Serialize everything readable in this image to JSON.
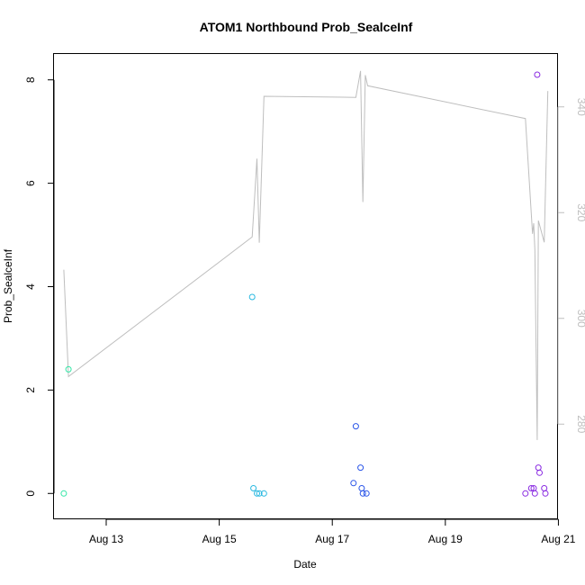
{
  "chart_data": {
    "type": "scatter",
    "title": "ATOM1 Northbound Prob_SealceInf",
    "xlabel": "Date",
    "ylabel": "Prob_SealceInf",
    "x_tick_labels": [
      {
        "date": "2013-08-13",
        "label": "Aug 13"
      },
      {
        "date": "2013-08-15",
        "label": "Aug 15"
      },
      {
        "date": "2013-08-17",
        "label": "Aug 17"
      },
      {
        "date": "2013-08-19",
        "label": "Aug 19"
      },
      {
        "date": "2013-08-21",
        "label": "Aug 21"
      }
    ],
    "xlim": [
      "2013-08-12T01:50",
      "2013-08-20T23:50"
    ],
    "ylim": [
      -0.5,
      8.5
    ],
    "y_ticks": [
      0,
      2,
      4,
      6,
      8
    ],
    "y2lim": [
      262,
      350
    ],
    "y2_ticks": [
      280,
      300,
      320,
      340
    ],
    "points": [
      {
        "x": "2013-08-12T06:00",
        "y": 0.0,
        "color": "#33e6a6"
      },
      {
        "x": "2013-08-12T08:00",
        "y": 2.4,
        "color": "#33e6a6"
      },
      {
        "x": "2013-08-15T14:00",
        "y": 3.8,
        "color": "#29b8e0"
      },
      {
        "x": "2013-08-15T14:30",
        "y": 0.1,
        "color": "#29b8e0"
      },
      {
        "x": "2013-08-15T16:00",
        "y": 0.0,
        "color": "#29b8e0"
      },
      {
        "x": "2013-08-15T17:00",
        "y": 0.0,
        "color": "#29b8e0"
      },
      {
        "x": "2013-08-15T19:00",
        "y": 0.0,
        "color": "#29b8e0"
      },
      {
        "x": "2013-08-17T09:00",
        "y": 0.2,
        "color": "#2a55e8"
      },
      {
        "x": "2013-08-17T10:00",
        "y": 1.3,
        "color": "#2a55e8"
      },
      {
        "x": "2013-08-17T12:00",
        "y": 0.5,
        "color": "#2a55e8"
      },
      {
        "x": "2013-08-17T12:30",
        "y": 0.1,
        "color": "#2a55e8"
      },
      {
        "x": "2013-08-17T13:00",
        "y": 0.0,
        "color": "#2a55e8"
      },
      {
        "x": "2013-08-17T14:30",
        "y": 0.0,
        "color": "#2a55e8"
      },
      {
        "x": "2013-08-20T10:00",
        "y": 0.0,
        "color": "#8a2be2"
      },
      {
        "x": "2013-08-20T12:30",
        "y": 0.1,
        "color": "#8a2be2"
      },
      {
        "x": "2013-08-20T13:30",
        "y": 0.1,
        "color": "#8a2be2"
      },
      {
        "x": "2013-08-20T14:00",
        "y": 0.0,
        "color": "#8a2be2"
      },
      {
        "x": "2013-08-20T15:00",
        "y": 8.1,
        "color": "#8a2be2"
      },
      {
        "x": "2013-08-20T15:30",
        "y": 0.5,
        "color": "#8a2be2"
      },
      {
        "x": "2013-08-20T16:00",
        "y": 0.4,
        "color": "#8a2be2"
      },
      {
        "x": "2013-08-20T18:00",
        "y": 0.1,
        "color": "#8a2be2"
      },
      {
        "x": "2013-08-20T18:30",
        "y": 0.0,
        "color": "#8a2be2"
      }
    ],
    "line_series": {
      "color": "#bebebe",
      "axis": "right",
      "points": [
        {
          "x": "2013-08-12T06:00",
          "y": 309.2
        },
        {
          "x": "2013-08-12T08:00",
          "y": 289.0
        },
        {
          "x": "2013-08-15T14:00",
          "y": 315.4
        },
        {
          "x": "2013-08-15T16:00",
          "y": 330.2
        },
        {
          "x": "2013-08-15T17:00",
          "y": 314.3
        },
        {
          "x": "2013-08-15T19:00",
          "y": 342.0
        },
        {
          "x": "2013-08-17T10:00",
          "y": 341.8
        },
        {
          "x": "2013-08-17T12:00",
          "y": 346.8
        },
        {
          "x": "2013-08-17T13:00",
          "y": 322.0
        },
        {
          "x": "2013-08-17T14:00",
          "y": 346.0
        },
        {
          "x": "2013-08-17T15:00",
          "y": 344.0
        },
        {
          "x": "2013-08-20T10:00",
          "y": 337.8
        },
        {
          "x": "2013-08-20T13:00",
          "y": 316.0
        },
        {
          "x": "2013-08-20T13:30",
          "y": 318.0
        },
        {
          "x": "2013-08-20T14:00",
          "y": 313.0
        },
        {
          "x": "2013-08-20T15:00",
          "y": 277.0
        },
        {
          "x": "2013-08-20T15:30",
          "y": 318.5
        },
        {
          "x": "2013-08-20T18:00",
          "y": 314.4
        },
        {
          "x": "2013-08-20T19:30",
          "y": 343.0
        }
      ]
    }
  }
}
